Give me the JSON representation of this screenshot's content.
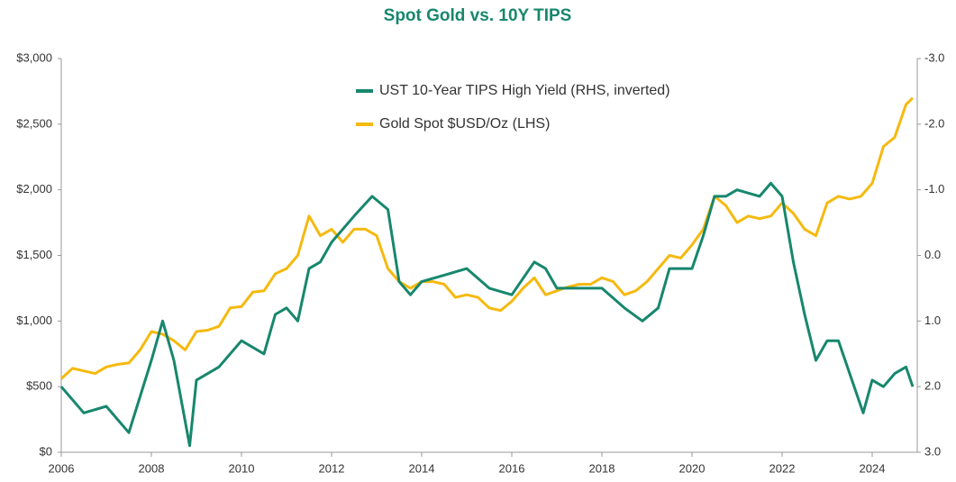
{
  "chart_data": {
    "type": "line",
    "title": "Spot Gold vs. 10Y TIPS",
    "xlim": [
      2006,
      2025
    ],
    "xticks": [
      2006,
      2008,
      2010,
      2012,
      2014,
      2016,
      2018,
      2020,
      2022,
      2024
    ],
    "ylim": [
      0,
      3000
    ],
    "yticks": [
      {
        "value": 0,
        "label": "$0"
      },
      {
        "value": 500,
        "label": "$500"
      },
      {
        "value": 1000,
        "label": "$1,000"
      },
      {
        "value": 1500,
        "label": "$1,500"
      },
      {
        "value": 2000,
        "label": "$2,000"
      },
      {
        "value": 2500,
        "label": "$2,500"
      },
      {
        "value": 3000,
        "label": "$3,000"
      }
    ],
    "y2lim": [
      3.0,
      -3.0
    ],
    "y2inverted": true,
    "y2ticks": [
      {
        "value": -3,
        "label": "-3.0"
      },
      {
        "value": -2,
        "label": "-2.0"
      },
      {
        "value": -1,
        "label": "-1.0"
      },
      {
        "value": 0,
        "label": "0.0"
      },
      {
        "value": 1,
        "label": "1.0"
      },
      {
        "value": 2,
        "label": "2.0"
      },
      {
        "value": 3,
        "label": "3.0"
      }
    ],
    "grid": false,
    "legend": "top",
    "series": [
      {
        "name": "UST 10-Year TIPS High Yield (RHS, inverted)",
        "color": "#17876d",
        "axis": "y2",
        "x": [
          2006,
          2006.5,
          2007,
          2007.5,
          2008,
          2008.25,
          2008.5,
          2008.85,
          2009,
          2009.5,
          2010,
          2010.5,
          2010.75,
          2011,
          2011.25,
          2011.5,
          2011.75,
          2012,
          2012.5,
          2012.9,
          2013.25,
          2013.5,
          2013.75,
          2014,
          2014.5,
          2015,
          2015.5,
          2016,
          2016.5,
          2016.75,
          2017,
          2017.5,
          2018,
          2018.5,
          2018.9,
          2019.25,
          2019.5,
          2020,
          2020.25,
          2020.5,
          2020.75,
          2021,
          2021.5,
          2021.75,
          2022,
          2022.25,
          2022.5,
          2022.75,
          2023,
          2023.25,
          2023.5,
          2023.8,
          2024,
          2024.25,
          2024.5,
          2024.75,
          2024.9
        ],
        "values": [
          2.0,
          2.4,
          2.3,
          2.7,
          1.6,
          1.0,
          1.6,
          2.9,
          1.9,
          1.7,
          1.3,
          1.5,
          0.9,
          0.8,
          1.0,
          0.2,
          0.1,
          -0.2,
          -0.6,
          -0.9,
          -0.7,
          0.4,
          0.6,
          0.4,
          0.3,
          0.2,
          0.5,
          0.6,
          0.1,
          0.2,
          0.5,
          0.5,
          0.5,
          0.8,
          1.0,
          0.8,
          0.2,
          0.2,
          -0.3,
          -0.9,
          -0.9,
          -1.0,
          -0.9,
          -1.1,
          -0.9,
          0.1,
          0.9,
          1.6,
          1.3,
          1.3,
          1.8,
          2.4,
          1.9,
          2.0,
          1.8,
          1.7,
          2.0
        ]
      },
      {
        "name": "Gold Spot $USD/Oz (LHS)",
        "color": "#f5b90f",
        "x": [
          2006,
          2006.25,
          2006.5,
          2006.75,
          2007,
          2007.25,
          2007.5,
          2007.75,
          2008,
          2008.25,
          2008.5,
          2008.75,
          2009,
          2009.25,
          2009.5,
          2009.75,
          2010,
          2010.25,
          2010.5,
          2010.75,
          2011,
          2011.25,
          2011.5,
          2011.75,
          2012,
          2012.25,
          2012.5,
          2012.75,
          2013,
          2013.25,
          2013.5,
          2013.75,
          2014,
          2014.25,
          2014.5,
          2014.75,
          2015,
          2015.25,
          2015.5,
          2015.75,
          2016,
          2016.25,
          2016.5,
          2016.75,
          2017,
          2017.25,
          2017.5,
          2017.75,
          2018,
          2018.25,
          2018.5,
          2018.75,
          2019,
          2019.25,
          2019.5,
          2019.75,
          2020,
          2020.25,
          2020.5,
          2020.75,
          2021,
          2021.25,
          2021.5,
          2021.75,
          2022,
          2022.25,
          2022.5,
          2022.75,
          2023,
          2023.25,
          2023.5,
          2023.75,
          2024,
          2024.25,
          2024.5,
          2024.75,
          2024.9
        ],
        "values": [
          560,
          640,
          620,
          600,
          650,
          670,
          680,
          780,
          920,
          900,
          850,
          780,
          920,
          930,
          960,
          1100,
          1110,
          1220,
          1230,
          1360,
          1400,
          1500,
          1800,
          1650,
          1700,
          1600,
          1700,
          1700,
          1650,
          1400,
          1300,
          1250,
          1300,
          1300,
          1280,
          1180,
          1200,
          1180,
          1100,
          1080,
          1150,
          1250,
          1330,
          1200,
          1230,
          1260,
          1280,
          1280,
          1330,
          1300,
          1200,
          1230,
          1300,
          1400,
          1500,
          1480,
          1580,
          1700,
          1950,
          1880,
          1750,
          1800,
          1780,
          1800,
          1900,
          1820,
          1700,
          1650,
          1900,
          1950,
          1930,
          1950,
          2050,
          2330,
          2400,
          2650,
          2700
        ]
      }
    ]
  }
}
